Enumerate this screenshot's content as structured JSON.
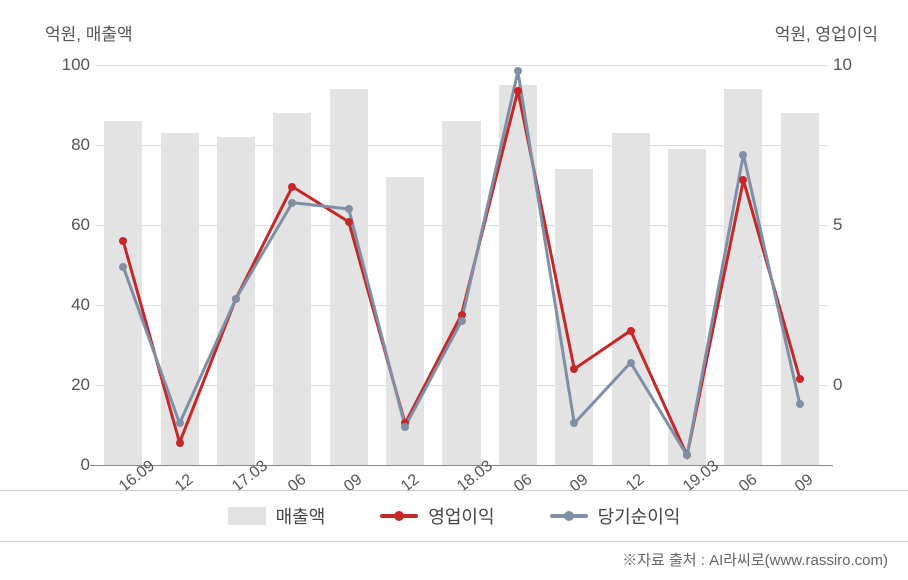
{
  "chart": {
    "type": "combo_bar_line",
    "left_axis_title": "억원, 매출액",
    "right_axis_title": "억원, 영업이익",
    "background_color": "#ffffff",
    "grid_color": "#dddddd",
    "baseline_color": "#888888",
    "tick_font_size": 17,
    "label_color": "#555555",
    "categories": [
      "16.09",
      "12",
      "17.03",
      "06",
      "09",
      "12",
      "18.03",
      "06",
      "09",
      "12",
      "19.03",
      "06",
      "09"
    ],
    "left_ylim_min": 0,
    "left_ylim_max": 100,
    "left_yticks": [
      0,
      20,
      40,
      60,
      80,
      100
    ],
    "right_ylim_min": -2.5,
    "right_ylim_max": 10,
    "right_yticks": [
      0,
      5,
      10
    ],
    "bars": {
      "label": "매출액",
      "color": "#e3e3e3",
      "width_pct": 5.2,
      "values": [
        86,
        83,
        82,
        88,
        94,
        72,
        86,
        95,
        74,
        83,
        79,
        94,
        88
      ]
    },
    "lines": [
      {
        "label": "영업이익",
        "color": "#c62828",
        "line_width": 3,
        "marker": "circle",
        "marker_size": 8,
        "values": [
          4.5,
          -1.8,
          2.7,
          6.2,
          5.1,
          -1.2,
          2.2,
          9.2,
          0.5,
          1.7,
          -2.2,
          6.4,
          0.2
        ]
      },
      {
        "label": "당기순이익",
        "color": "#7f8fa6",
        "line_width": 3,
        "marker": "circle",
        "marker_size": 8,
        "values": [
          3.7,
          -1.2,
          2.7,
          5.7,
          5.5,
          -1.3,
          2.0,
          9.8,
          -1.2,
          0.7,
          -2.2,
          7.2,
          -0.6
        ]
      }
    ]
  },
  "legend_items": {
    "bar": "매출액",
    "line1": "영업이익",
    "line2": "당기순이익"
  },
  "source_text": "※자료 출처 : AI라씨로(www.rassiro.com)"
}
